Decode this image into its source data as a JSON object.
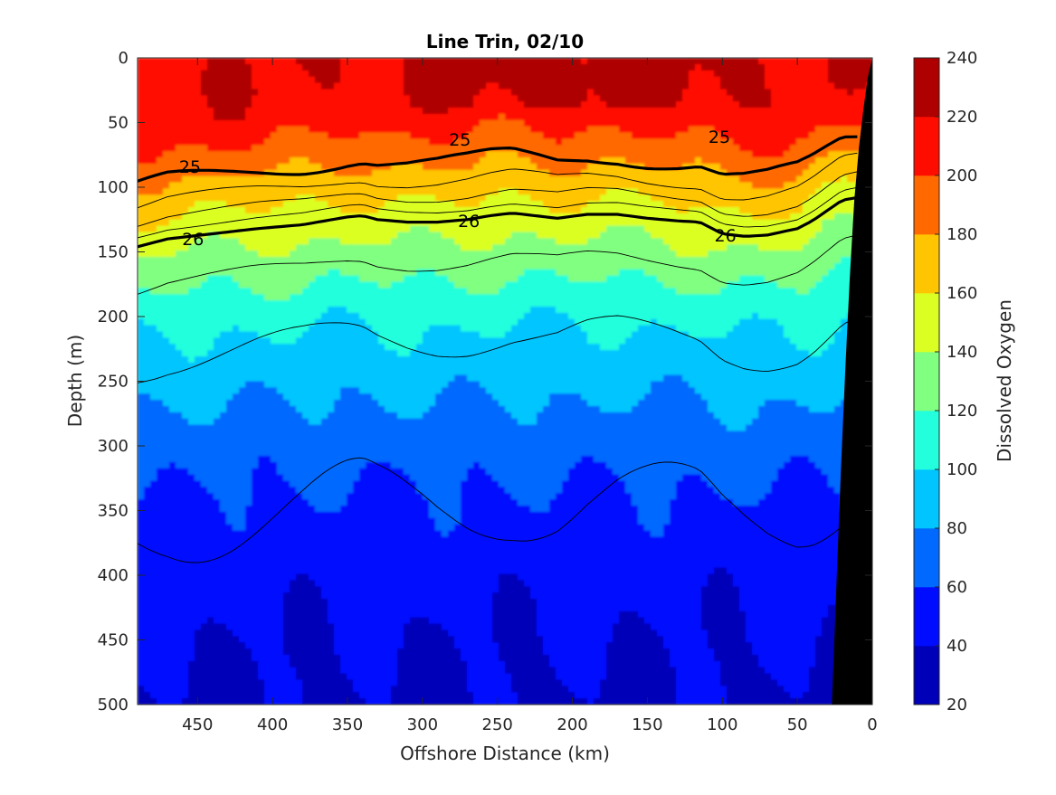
{
  "chart_data": {
    "type": "heatmap",
    "title": "Line Trin, 02/10",
    "xlabel": "Offshore Distance (km)",
    "ylabel": "Depth (m)",
    "colorbar_label": "Dissolved Oxygen",
    "xlim": [
      490,
      0
    ],
    "ylim": [
      0,
      500
    ],
    "x_reversed": true,
    "y_reversed": true,
    "x_ticks": [
      450,
      400,
      350,
      300,
      250,
      200,
      150,
      100,
      50,
      0
    ],
    "y_ticks": [
      0,
      50,
      100,
      150,
      200,
      250,
      300,
      350,
      400,
      450,
      500
    ],
    "colorbar_range": [
      20,
      240
    ],
    "colorbar_ticks": [
      20,
      40,
      60,
      80,
      100,
      120,
      140,
      160,
      180,
      200,
      220,
      240
    ],
    "colormap": "jet",
    "colormap_stops": [
      "#00008f",
      "#0000ff",
      "#0080ff",
      "#00ffff",
      "#80ff80",
      "#ffff00",
      "#ff8000",
      "#ff0000",
      "#800000"
    ],
    "oxygen_profile": {
      "depths": [
        0,
        20,
        40,
        60,
        80,
        100,
        120,
        140,
        160,
        180,
        200,
        230,
        260,
        300,
        340,
        380,
        420,
        460,
        500
      ],
      "values": [
        218,
        218,
        214,
        200,
        184,
        168,
        155,
        141,
        128,
        116,
        104,
        92,
        82,
        68,
        58,
        50,
        44,
        40,
        37
      ]
    },
    "reference_isopycnal": {
      "x": [
        490,
        470,
        440,
        410,
        380,
        365,
        350,
        340,
        330,
        310,
        290,
        270,
        255,
        240,
        225,
        210,
        190,
        170,
        150,
        130,
        115,
        100,
        85,
        70,
        50,
        40,
        30,
        20,
        10
      ],
      "depth": [
        146,
        140,
        136,
        132,
        129,
        126,
        123,
        122,
        125,
        127,
        127,
        125,
        122,
        120,
        122,
        124,
        121,
        121,
        124,
        126,
        127,
        136,
        138,
        137,
        132,
        126,
        118,
        110,
        108
      ]
    },
    "bottom_topography": {
      "x": [
        27,
        24,
        21,
        18,
        15,
        12,
        9,
        6,
        3,
        0
      ],
      "depth": [
        500,
        410,
        320,
        240,
        170,
        110,
        70,
        40,
        15,
        0
      ]
    },
    "contour_lines": [
      {
        "label": "25",
        "bold": true,
        "offset": -45
      },
      {
        "label": "",
        "bold": false,
        "offset": -30
      },
      {
        "label": "",
        "bold": false,
        "offset": -18
      },
      {
        "label": "",
        "bold": false,
        "offset": -8
      },
      {
        "label": "26",
        "bold": true,
        "offset": 0
      },
      {
        "label": "",
        "bold": false,
        "offset": 33
      },
      {
        "label": "",
        "bold": false,
        "offset": 92
      },
      {
        "label": "",
        "bold": false,
        "offset": 220
      }
    ],
    "contour_labels": [
      {
        "label": "25",
        "x": 455,
        "depth": 84
      },
      {
        "label": "25",
        "x": 275,
        "depth": 63
      },
      {
        "label": "25",
        "x": 102,
        "depth": 61
      },
      {
        "label": "26",
        "x": 453,
        "depth": 140
      },
      {
        "label": "26",
        "x": 269,
        "depth": 126
      },
      {
        "label": "26",
        "x": 98,
        "depth": 137
      }
    ]
  }
}
